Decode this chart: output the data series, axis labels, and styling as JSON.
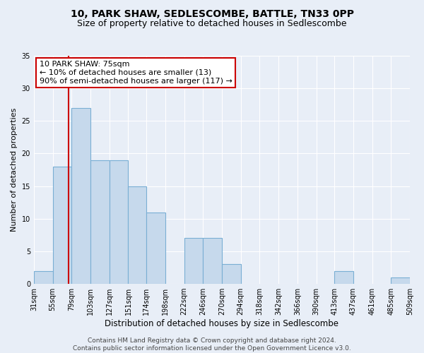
{
  "title": "10, PARK SHAW, SEDLESCOMBE, BATTLE, TN33 0PP",
  "subtitle": "Size of property relative to detached houses in Sedlescombe",
  "xlabel": "Distribution of detached houses by size in Sedlescombe",
  "ylabel": "Number of detached properties",
  "bar_color": "#c6d9ec",
  "bar_edge_color": "#7aafd4",
  "vline_x": 75,
  "vline_color": "#cc0000",
  "annotation_text": "10 PARK SHAW: 75sqm\n← 10% of detached houses are smaller (13)\n90% of semi-detached houses are larger (117) →",
  "annotation_box_color": "#ffffff",
  "annotation_box_edge_color": "#cc0000",
  "bin_edges": [
    31,
    55,
    79,
    103,
    127,
    151,
    174,
    198,
    222,
    246,
    270,
    294,
    318,
    342,
    366,
    390,
    413,
    437,
    461,
    485,
    509
  ],
  "bar_heights": [
    2,
    18,
    27,
    19,
    19,
    15,
    11,
    0,
    7,
    7,
    3,
    0,
    0,
    0,
    0,
    0,
    2,
    0,
    0,
    1
  ],
  "ylim": [
    0,
    35
  ],
  "yticks": [
    0,
    5,
    10,
    15,
    20,
    25,
    30,
    35
  ],
  "background_color": "#e8eef7",
  "plot_bg_color": "#e8eef7",
  "grid_color": "#ffffff",
  "footer_text": "Contains HM Land Registry data © Crown copyright and database right 2024.\nContains public sector information licensed under the Open Government Licence v3.0.",
  "title_fontsize": 10,
  "subtitle_fontsize": 9,
  "xlabel_fontsize": 8.5,
  "ylabel_fontsize": 8,
  "tick_fontsize": 7,
  "annotation_fontsize": 8,
  "footer_fontsize": 6.5
}
